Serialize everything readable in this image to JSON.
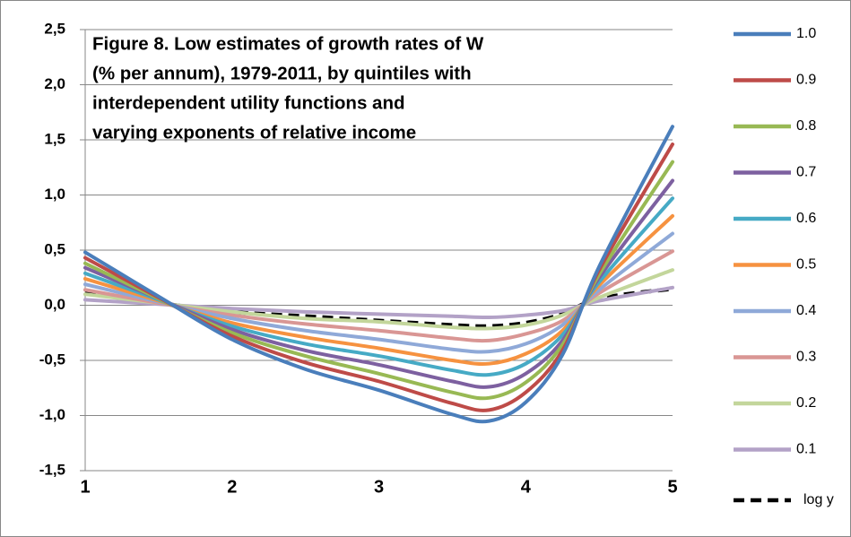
{
  "chart_data": {
    "type": "line",
    "title": [
      "Figure 8. Low estimates of growth rates of W",
      "(% per annum), 1979-2011, by quintiles with",
      "interdependent utility functions  and",
      "varying exponents of relative income"
    ],
    "x": [
      1,
      1.5,
      2,
      2.5,
      3,
      3.5,
      3.75,
      4,
      4.25,
      4.5,
      5
    ],
    "xlim": [
      1,
      5
    ],
    "xticks": [
      1,
      2,
      3,
      4,
      5
    ],
    "ylim": [
      -1.5,
      2.5
    ],
    "yticks": [
      {
        "value": -1.5,
        "label": "-1,5"
      },
      {
        "value": -1,
        "label": "-1,0"
      },
      {
        "value": -0.5,
        "label": "-0,5"
      },
      {
        "value": 0,
        "label": "0,0"
      },
      {
        "value": 0.5,
        "label": "0,5"
      },
      {
        "value": 1,
        "label": "1,0"
      },
      {
        "value": 1.5,
        "label": "1,5"
      },
      {
        "value": 2,
        "label": "2,0"
      },
      {
        "value": 2.5,
        "label": "2,5"
      }
    ],
    "grid": true,
    "legend": "right",
    "smooth": true,
    "series": [
      {
        "name": "1.0",
        "color": "#4a7ebb",
        "values": [
          0.48,
          0.08,
          -0.31,
          -0.58,
          -0.77,
          -0.99,
          -1.05,
          -0.88,
          -0.45,
          0.35,
          1.62
        ]
      },
      {
        "name": "0.9",
        "color": "#be4b48",
        "values": [
          0.43,
          0.07,
          -0.28,
          -0.52,
          -0.69,
          -0.89,
          -0.95,
          -0.79,
          -0.41,
          0.32,
          1.46
        ]
      },
      {
        "name": "0.8",
        "color": "#98b954",
        "values": [
          0.38,
          0.06,
          -0.25,
          -0.46,
          -0.62,
          -0.79,
          -0.84,
          -0.7,
          -0.36,
          0.28,
          1.3
        ]
      },
      {
        "name": "0.7",
        "color": "#7d60a0",
        "values": [
          0.34,
          0.06,
          -0.22,
          -0.41,
          -0.54,
          -0.69,
          -0.74,
          -0.62,
          -0.32,
          0.25,
          1.13
        ]
      },
      {
        "name": "0.6",
        "color": "#46aac5",
        "values": [
          0.29,
          0.05,
          -0.19,
          -0.35,
          -0.46,
          -0.59,
          -0.63,
          -0.53,
          -0.27,
          0.21,
          0.97
        ]
      },
      {
        "name": "0.5",
        "color": "#f69240",
        "values": [
          0.24,
          0.04,
          -0.16,
          -0.29,
          -0.39,
          -0.5,
          -0.53,
          -0.44,
          -0.23,
          0.18,
          0.81
        ]
      },
      {
        "name": "0.4",
        "color": "#8fa9d8",
        "values": [
          0.19,
          0.03,
          -0.12,
          -0.23,
          -0.31,
          -0.4,
          -0.42,
          -0.35,
          -0.18,
          0.14,
          0.65
        ]
      },
      {
        "name": "0.3",
        "color": "#d99694",
        "values": [
          0.14,
          0.02,
          -0.09,
          -0.17,
          -0.23,
          -0.3,
          -0.32,
          -0.26,
          -0.14,
          0.11,
          0.49
        ]
      },
      {
        "name": "0.2",
        "color": "#c3d69b",
        "values": [
          0.1,
          0.02,
          -0.06,
          -0.12,
          -0.15,
          -0.2,
          -0.21,
          -0.18,
          -0.09,
          0.07,
          0.32
        ]
      },
      {
        "name": "0.1",
        "color": "#b3a2c7",
        "values": [
          0.05,
          0.01,
          -0.03,
          -0.06,
          -0.08,
          -0.1,
          -0.11,
          -0.09,
          -0.05,
          0.04,
          0.16
        ]
      },
      {
        "name": "log y",
        "color": "#000000",
        "dashed": true,
        "values": [
          0.11,
          0.02,
          -0.06,
          -0.1,
          -0.14,
          -0.18,
          -0.19,
          -0.16,
          -0.08,
          0.06,
          0.15
        ]
      }
    ]
  }
}
